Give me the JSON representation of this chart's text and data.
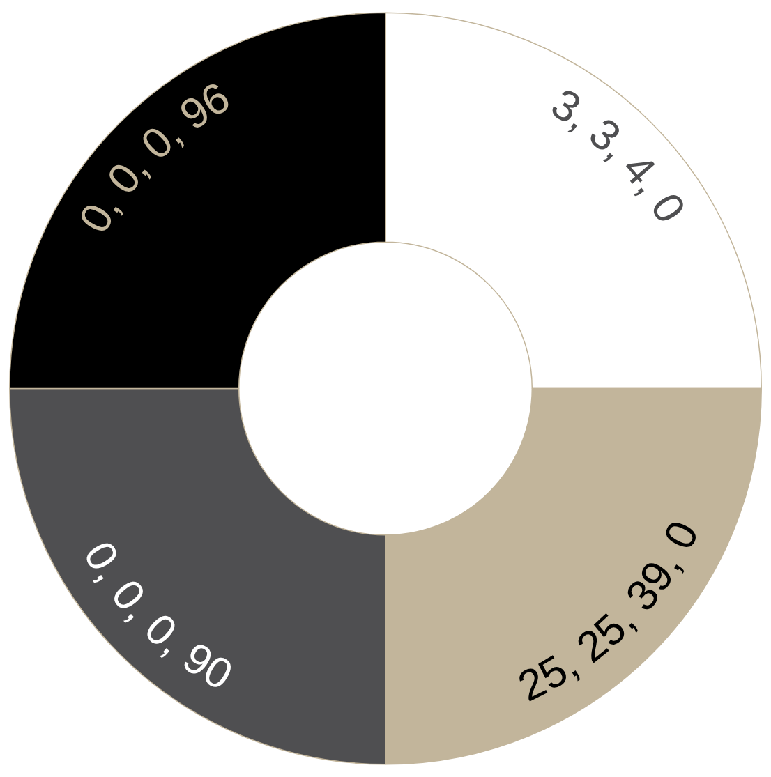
{
  "chart_data": {
    "type": "donut",
    "categories": [
      "3, 3, 4, 0",
      "25, 25, 39, 0",
      "0, 0, 0, 90",
      "0, 0, 0, 96"
    ],
    "values": [
      25,
      25,
      25,
      25
    ],
    "colors": [
      "#ffffff",
      "#c2b59b",
      "#4f4f51",
      "#000000"
    ],
    "legend": false
  }
}
